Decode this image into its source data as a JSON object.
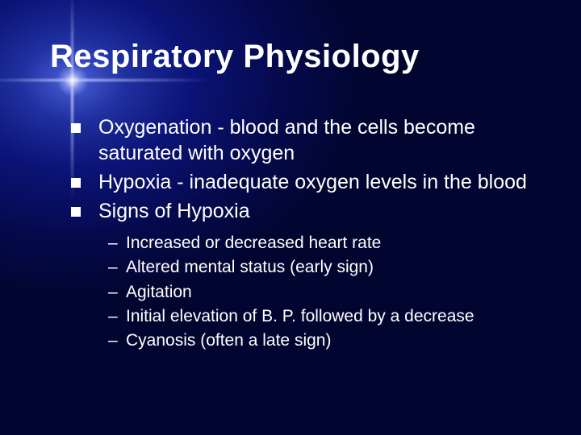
{
  "slide": {
    "background": {
      "gradient_center": "#4a5fd8",
      "gradient_mid": "#0b1478",
      "gradient_edge": "#020530",
      "text_color": "#ffffff",
      "bullet_color": "#ffffff"
    },
    "title": "Respiratory Physiology",
    "title_fontsize": 40,
    "body_fontsize": 25,
    "sub_fontsize": 21,
    "bullets": [
      {
        "text": "Oxygenation - blood and the cells become saturated with oxygen"
      },
      {
        "text": "Hypoxia - inadequate oxygen levels in the blood"
      },
      {
        "text": "Signs of Hypoxia",
        "subbullets": [
          "Increased or decreased heart rate",
          "Altered mental status (early sign)",
          "Agitation",
          "Initial elevation of B. P. followed by a decrease",
          "Cyanosis (often a late sign)"
        ]
      }
    ]
  }
}
